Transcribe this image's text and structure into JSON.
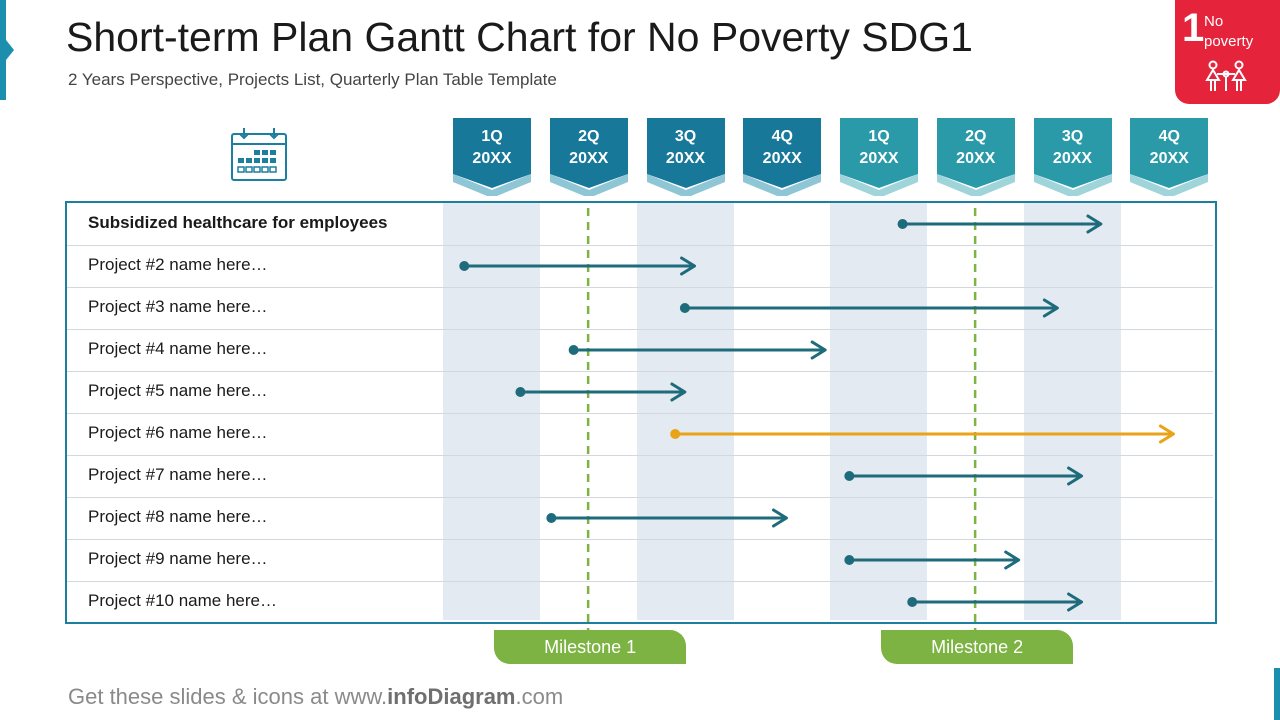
{
  "header": {
    "title": "Short-term Plan Gantt Chart for No Poverty SDG1",
    "subtitle": "2 Years Perspective, Projects List, Quarterly Plan Table Template"
  },
  "sdg_badge": {
    "number": "1",
    "line1": "No",
    "line2": "poverty",
    "color": "#e5243b"
  },
  "icons": {
    "calendar": "calendar-icon",
    "family": "family-icon"
  },
  "quarters": [
    {
      "q": "1Q",
      "year": "20XX",
      "color": "#17789a"
    },
    {
      "q": "2Q",
      "year": "20XX",
      "color": "#17789a"
    },
    {
      "q": "3Q",
      "year": "20XX",
      "color": "#17789a"
    },
    {
      "q": "4Q",
      "year": "20XX",
      "color": "#17789a"
    },
    {
      "q": "1Q",
      "year": "20XX",
      "color": "#2a9aa9"
    },
    {
      "q": "2Q",
      "year": "20XX",
      "color": "#2a9aa9"
    },
    {
      "q": "3Q",
      "year": "20XX",
      "color": "#2a9aa9"
    },
    {
      "q": "4Q",
      "year": "20XX",
      "color": "#2a9aa9"
    }
  ],
  "rows": [
    {
      "label": "Subsidized healthcare for employees",
      "start": 4.75,
      "end": 6.8,
      "color": "#1e6b7b",
      "bold": true
    },
    {
      "label": "Project #2 name here…",
      "start": 0.22,
      "end": 2.6,
      "color": "#1e6b7b"
    },
    {
      "label": "Project #3 name here…",
      "start": 2.5,
      "end": 6.35,
      "color": "#1e6b7b"
    },
    {
      "label": "Project #4 name here…",
      "start": 1.35,
      "end": 3.95,
      "color": "#1e6b7b"
    },
    {
      "label": "Project #5 name here…",
      "start": 0.8,
      "end": 2.5,
      "color": "#1e6b7b"
    },
    {
      "label": "Project #6 name here…",
      "start": 2.4,
      "end": 7.55,
      "color": "#e8a317"
    },
    {
      "label": "Project #7 name here…",
      "start": 4.2,
      "end": 6.6,
      "color": "#1e6b7b"
    },
    {
      "label": "Project #8 name here…",
      "start": 1.12,
      "end": 3.55,
      "color": "#1e6b7b"
    },
    {
      "label": "Project #9 name here…",
      "start": 4.2,
      "end": 5.95,
      "color": "#1e6b7b"
    },
    {
      "label": "Project #10 name here…",
      "start": 4.85,
      "end": 6.6,
      "color": "#1e6b7b"
    }
  ],
  "milestones": [
    {
      "label": "Milestone 1",
      "at": 1.5
    },
    {
      "label": "Milestone 2",
      "at": 5.5
    }
  ],
  "milestone_color": "#7cb342",
  "footer": {
    "prefix": "Get these slides & icons at www.",
    "brand": "infoDiagram",
    "suffix": ".com"
  }
}
